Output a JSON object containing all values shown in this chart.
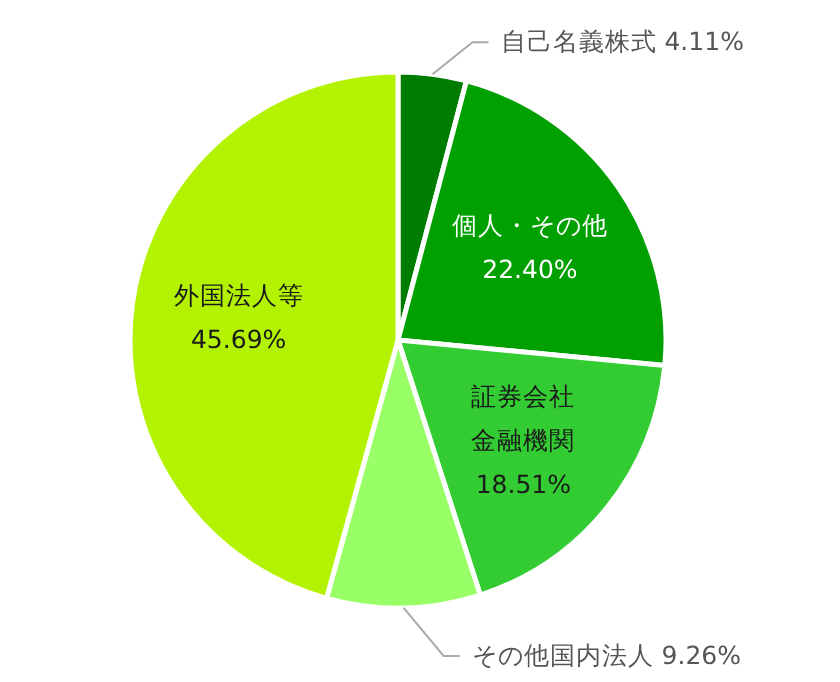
{
  "chart_data": {
    "type": "pie",
    "categories": [
      "自己名義株式",
      "個人・その他",
      "証券会社金融機関",
      "その他国内法人",
      "外国法人等"
    ],
    "values": [
      4.11,
      22.4,
      18.51,
      9.26,
      45.69
    ],
    "value_labels": [
      "4.11%",
      "22.40%",
      "18.51%",
      "9.26%",
      "45.69%"
    ],
    "colors": [
      "#007d00",
      "#00a000",
      "#33cc33",
      "#99ff66",
      "#b3f200"
    ]
  }
}
